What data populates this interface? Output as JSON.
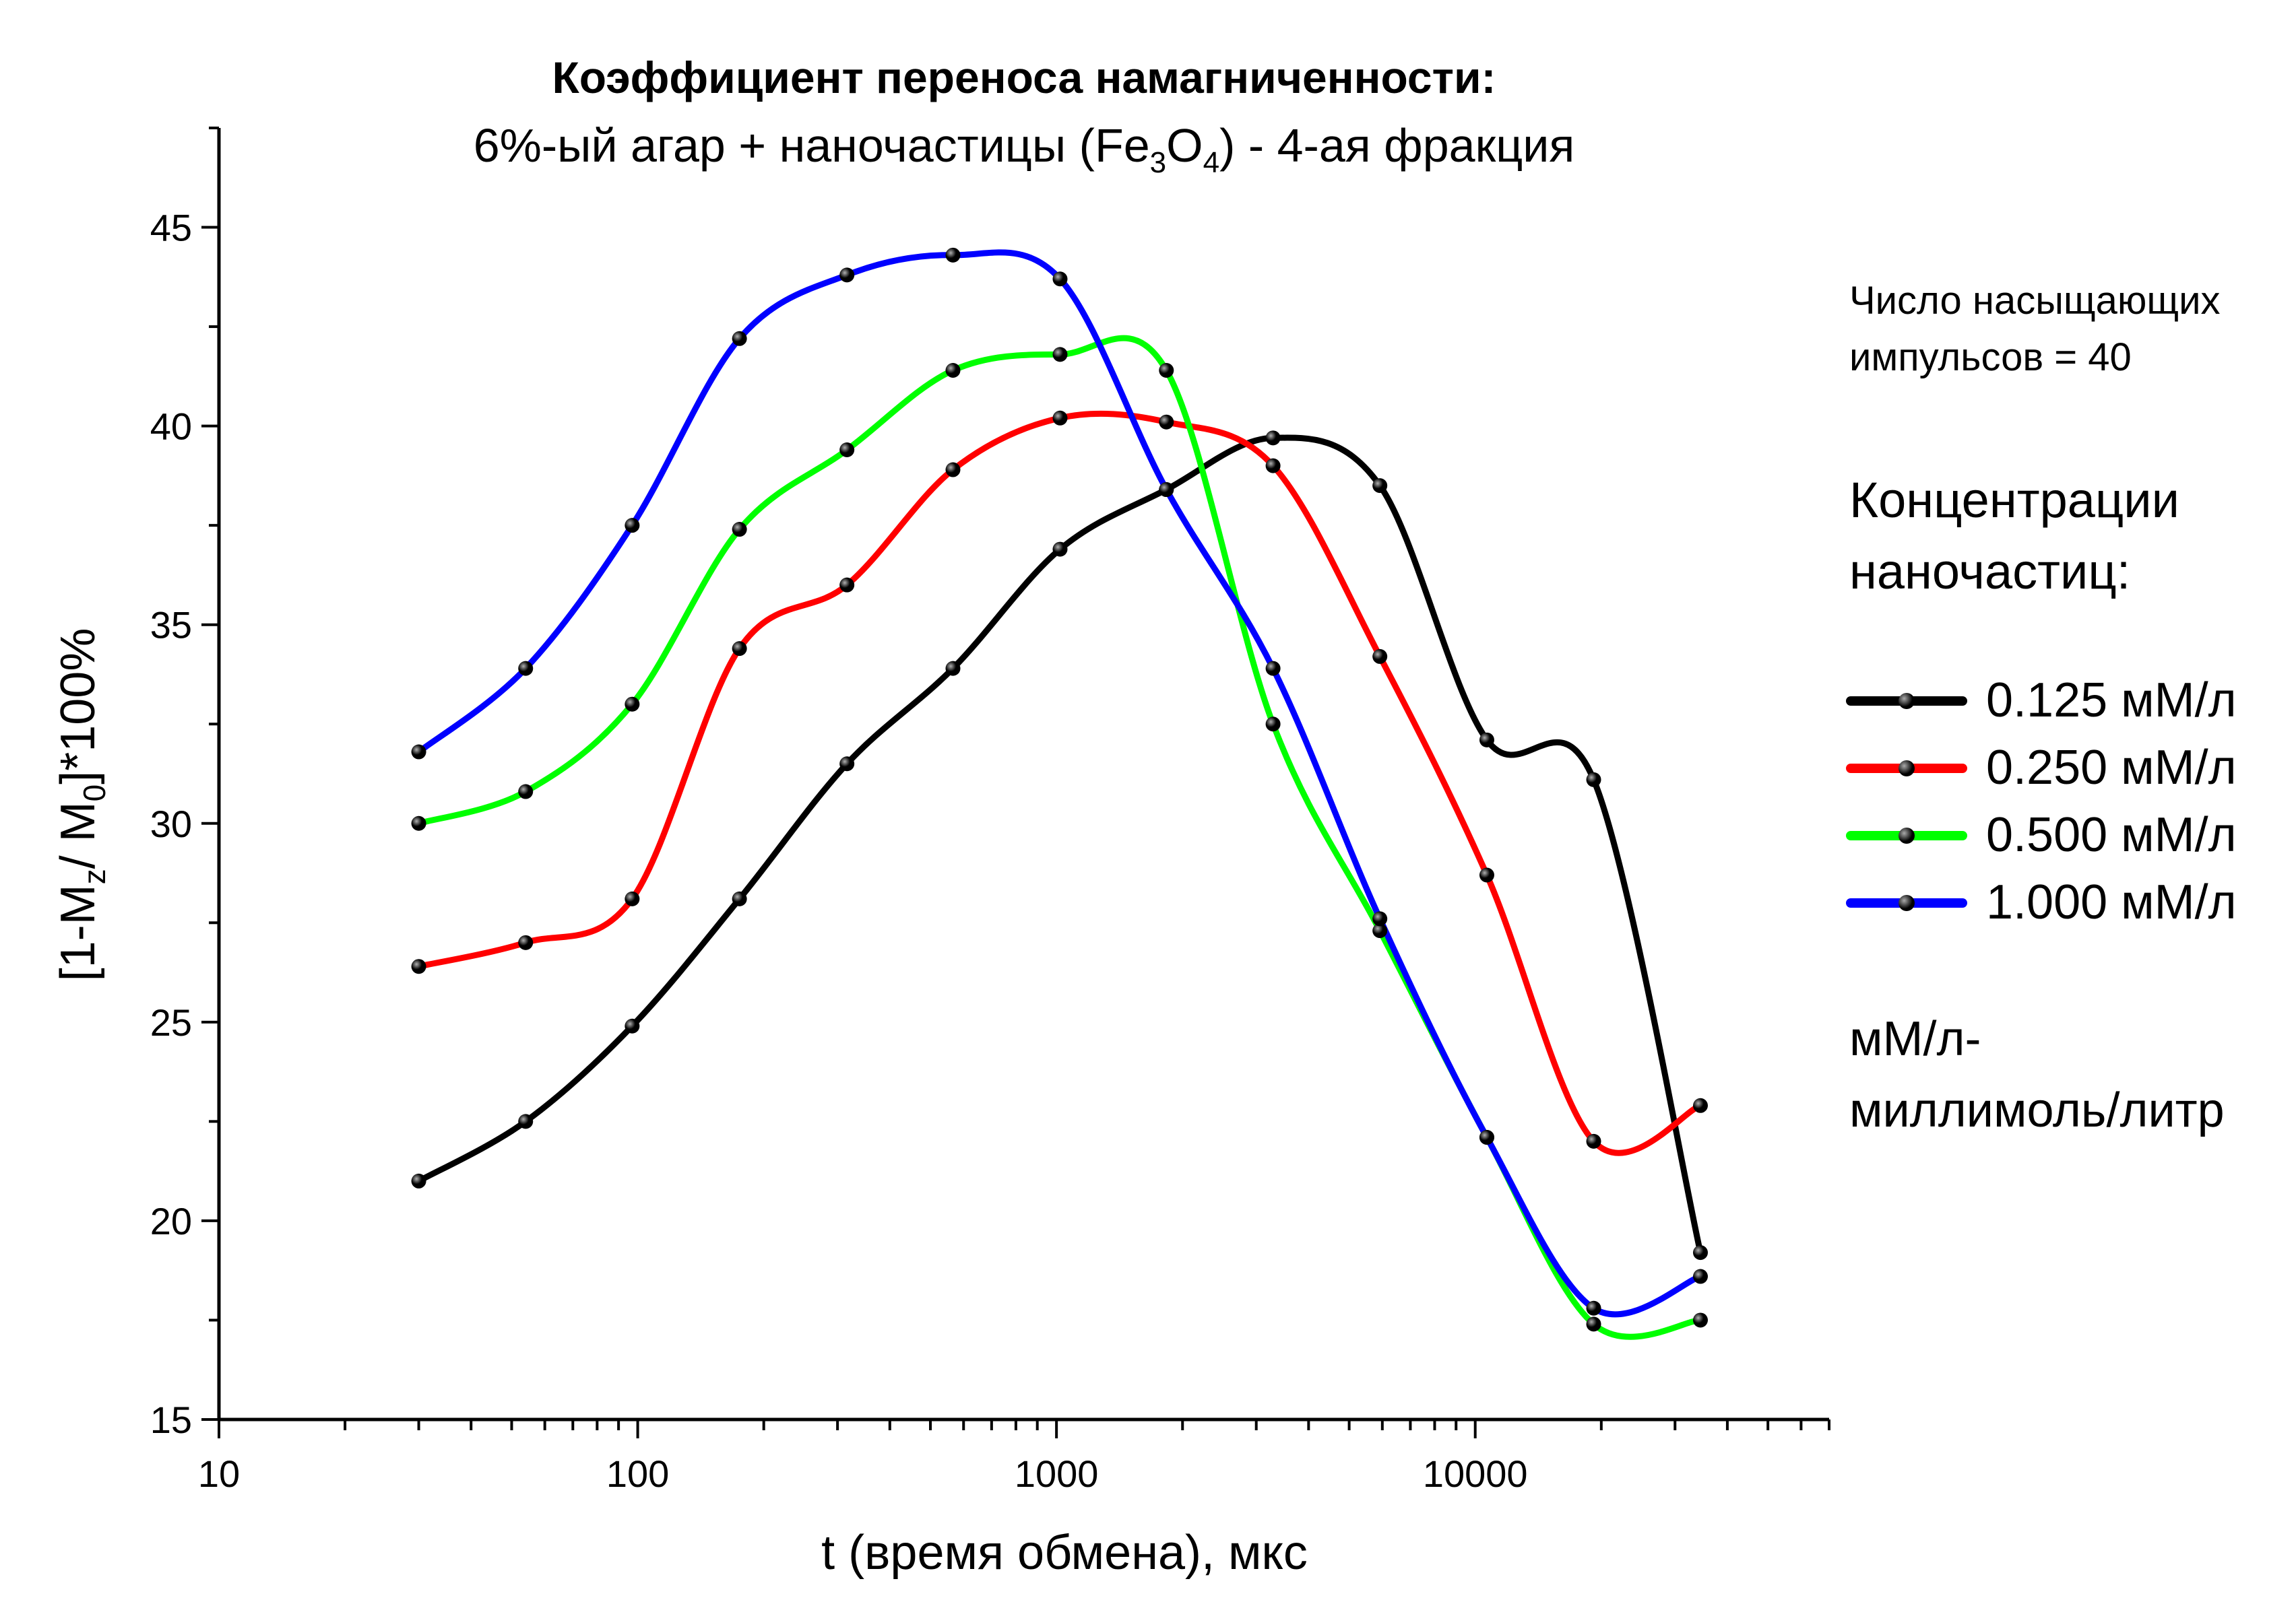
{
  "chart_data": {
    "type": "line",
    "title_line1": "Коэффициент переноса намагниченности:",
    "title_line2": {
      "before": "6%-ый агар + наночастицы (Fe",
      "sub1": "3",
      "middle": "O",
      "sub2": "4",
      "after": ") - 4-ая фракция"
    },
    "xlabel": "t (время обмена), мкс",
    "ylabel": {
      "p1": "[1-M",
      "s1": "z",
      "p2": "/ M",
      "s2": "0",
      "p3": "]*100%"
    },
    "x_scale": "log",
    "xlim": [
      10,
      70000
    ],
    "ylim": [
      15,
      47.5
    ],
    "x_ticks": [
      10,
      100,
      1000,
      10000
    ],
    "x_tick_labels": [
      "10",
      "100",
      "1000",
      "10000"
    ],
    "y_ticks": [
      15,
      20,
      25,
      30,
      35,
      40,
      45
    ],
    "y_tick_labels": [
      "15",
      "20",
      "25",
      "30",
      "35",
      "40",
      "45"
    ],
    "grid": false,
    "x": [
      30,
      54,
      97,
      175,
      316,
      566,
      1020,
      1830,
      3290,
      5920,
      10660,
      19180,
      34500
    ],
    "series": [
      {
        "name": "0.125 мМ/л",
        "color": "#000000",
        "values": [
          21.0,
          22.5,
          24.9,
          28.1,
          31.5,
          33.9,
          36.9,
          38.4,
          39.7,
          38.5,
          32.1,
          31.1,
          19.2
        ]
      },
      {
        "name": "0.250 мМ/л",
        "color": "#ff0000",
        "values": [
          26.4,
          27.0,
          28.1,
          34.4,
          36.0,
          38.9,
          40.2,
          40.1,
          39.0,
          34.2,
          28.7,
          22.0,
          22.9
        ]
      },
      {
        "name": "0.500 мМ/л",
        "color": "#00ff00",
        "values": [
          30.0,
          30.8,
          33.0,
          37.4,
          39.4,
          41.4,
          41.8,
          41.4,
          32.5,
          27.3,
          22.1,
          17.4,
          17.5
        ]
      },
      {
        "name": "1.000 мМ/л",
        "color": "#0000ff",
        "values": [
          31.8,
          33.9,
          37.5,
          42.2,
          43.8,
          44.3,
          43.7,
          38.4,
          33.9,
          27.6,
          22.1,
          17.8,
          18.6
        ]
      }
    ],
    "legend_position": "right",
    "note_pulses": [
      "Число насыщающих",
      "импульсов = 40"
    ],
    "legend_title": [
      "Концентрации",
      "наночастиц:"
    ],
    "unit_note": [
      "мМ/л-",
      "миллимоль/литр"
    ]
  }
}
